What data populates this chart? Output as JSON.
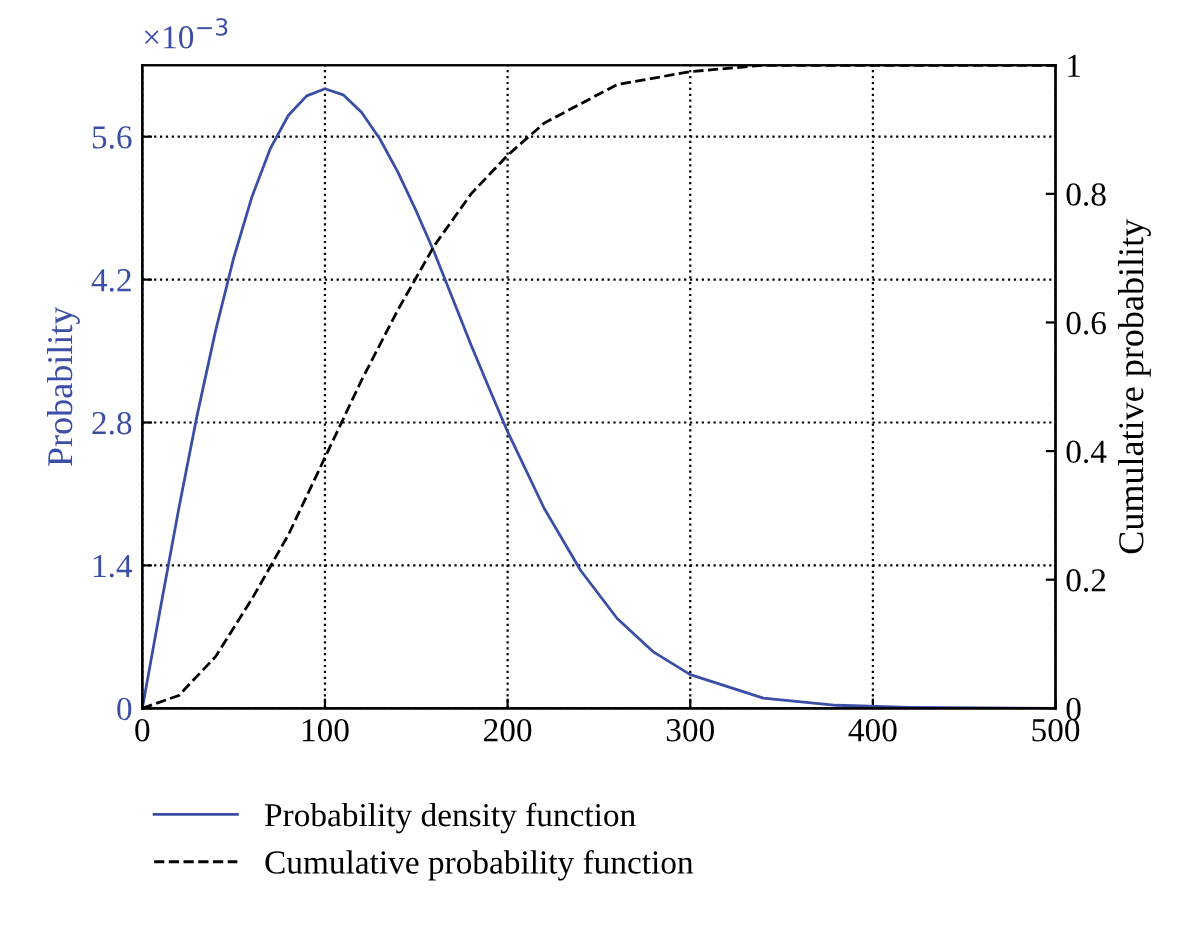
{
  "chart_data": {
    "type": "line",
    "ylabel": "Probability",
    "y2label": "Cumulative probability",
    "annotations": [
      "×10$^{−3}$"
    ],
    "xlim": [
      0,
      500
    ],
    "xticks": [
      0,
      100,
      200,
      300,
      400,
      500
    ],
    "ylim": [
      0,
      6.3
    ],
    "yticks": [
      0,
      1.4,
      2.8,
      4.2,
      5.6
    ],
    "y2lim": [
      0,
      1
    ],
    "y2ticks": [
      0,
      0.2,
      0.4,
      0.6,
      0.8,
      1
    ],
    "grid": true,
    "legend": "bottom",
    "marker": "none",
    "series": [
      {
        "name": "Probability density function",
        "color": "#3b4ea6",
        "line_style": "solid",
        "x": [
          0,
          10,
          20,
          30,
          40,
          50,
          60,
          70,
          80,
          90,
          100,
          110,
          120,
          130,
          140,
          150,
          160,
          170,
          180,
          190,
          200,
          220,
          240,
          260,
          280,
          300,
          340,
          380,
          420,
          500
        ],
        "values": [
          0,
          0.99,
          1.96,
          2.87,
          3.69,
          4.41,
          5.01,
          5.48,
          5.81,
          6.0,
          6.07,
          6.01,
          5.84,
          5.58,
          5.25,
          4.87,
          4.46,
          4.01,
          3.56,
          3.13,
          2.71,
          1.96,
          1.35,
          0.88,
          0.55,
          0.33,
          0.1,
          0.03,
          0.01,
          0
        ]
      },
      {
        "name": "Cumulative probability function",
        "color": "#000000",
        "line_style": "dashed",
        "axis": "y2",
        "x": [
          0,
          20,
          40,
          60,
          80,
          100,
          120,
          140,
          160,
          180,
          200,
          220,
          240,
          260,
          280,
          300,
          340,
          380,
          420,
          500
        ],
        "values": [
          0,
          0.02,
          0.08,
          0.17,
          0.27,
          0.39,
          0.51,
          0.62,
          0.72,
          0.8,
          0.86,
          0.91,
          0.94,
          0.97,
          0.98,
          0.99,
          1,
          1,
          1,
          1
        ]
      }
    ]
  }
}
